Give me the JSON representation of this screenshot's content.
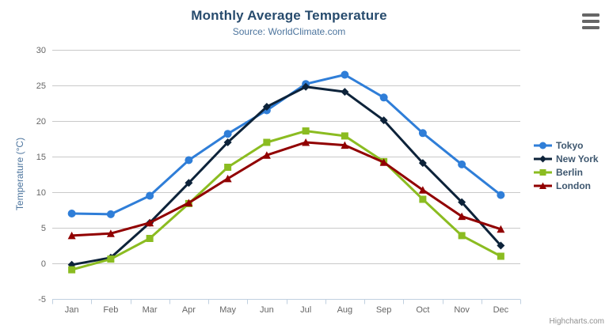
{
  "chart": {
    "title": "Monthly Average Temperature",
    "subtitle": "Source: WorldClimate.com",
    "credits": "Highcharts.com",
    "export_menu_icon": "hamburger-icon"
  },
  "chart_data": {
    "type": "line",
    "title": "Monthly Average Temperature",
    "subtitle": "Source: WorldClimate.com",
    "xlabel": "",
    "ylabel": "Temperature (°C)",
    "ylim": [
      -5,
      30
    ],
    "yticks": [
      -5,
      0,
      5,
      10,
      15,
      20,
      25,
      30
    ],
    "grid": true,
    "legend_position": "right",
    "categories": [
      "Jan",
      "Feb",
      "Mar",
      "Apr",
      "May",
      "Jun",
      "Jul",
      "Aug",
      "Sep",
      "Oct",
      "Nov",
      "Dec"
    ],
    "series": [
      {
        "name": "Tokyo",
        "color": "#2f7ed8",
        "marker": "circle",
        "values": [
          7.0,
          6.9,
          9.5,
          14.5,
          18.2,
          21.5,
          25.2,
          26.5,
          23.3,
          18.3,
          13.9,
          9.6
        ]
      },
      {
        "name": "New York",
        "color": "#0d233a",
        "marker": "diamond",
        "values": [
          -0.2,
          0.8,
          5.7,
          11.3,
          17.0,
          22.0,
          24.8,
          24.1,
          20.1,
          14.1,
          8.6,
          2.5
        ]
      },
      {
        "name": "Berlin",
        "color": "#8bbc21",
        "marker": "square",
        "values": [
          -0.9,
          0.6,
          3.5,
          8.4,
          13.5,
          17.0,
          18.6,
          17.9,
          14.3,
          9.0,
          3.9,
          1.0
        ]
      },
      {
        "name": "London",
        "color": "#910000",
        "marker": "triangle",
        "values": [
          3.9,
          4.2,
          5.7,
          8.5,
          11.9,
          15.2,
          17.0,
          16.6,
          14.2,
          10.3,
          6.6,
          4.8
        ]
      }
    ]
  },
  "colors": {
    "background": "#ffffff",
    "title": "#274b6d",
    "subtitle": "#4d759e",
    "axis_title": "#4d759e",
    "axis_label": "#666666",
    "grid_line": "#c9c9c9",
    "axis_line": "#c0d0e0",
    "legend_text": "#3e576f",
    "credits": "#909090",
    "menu_icon": "#666666"
  }
}
